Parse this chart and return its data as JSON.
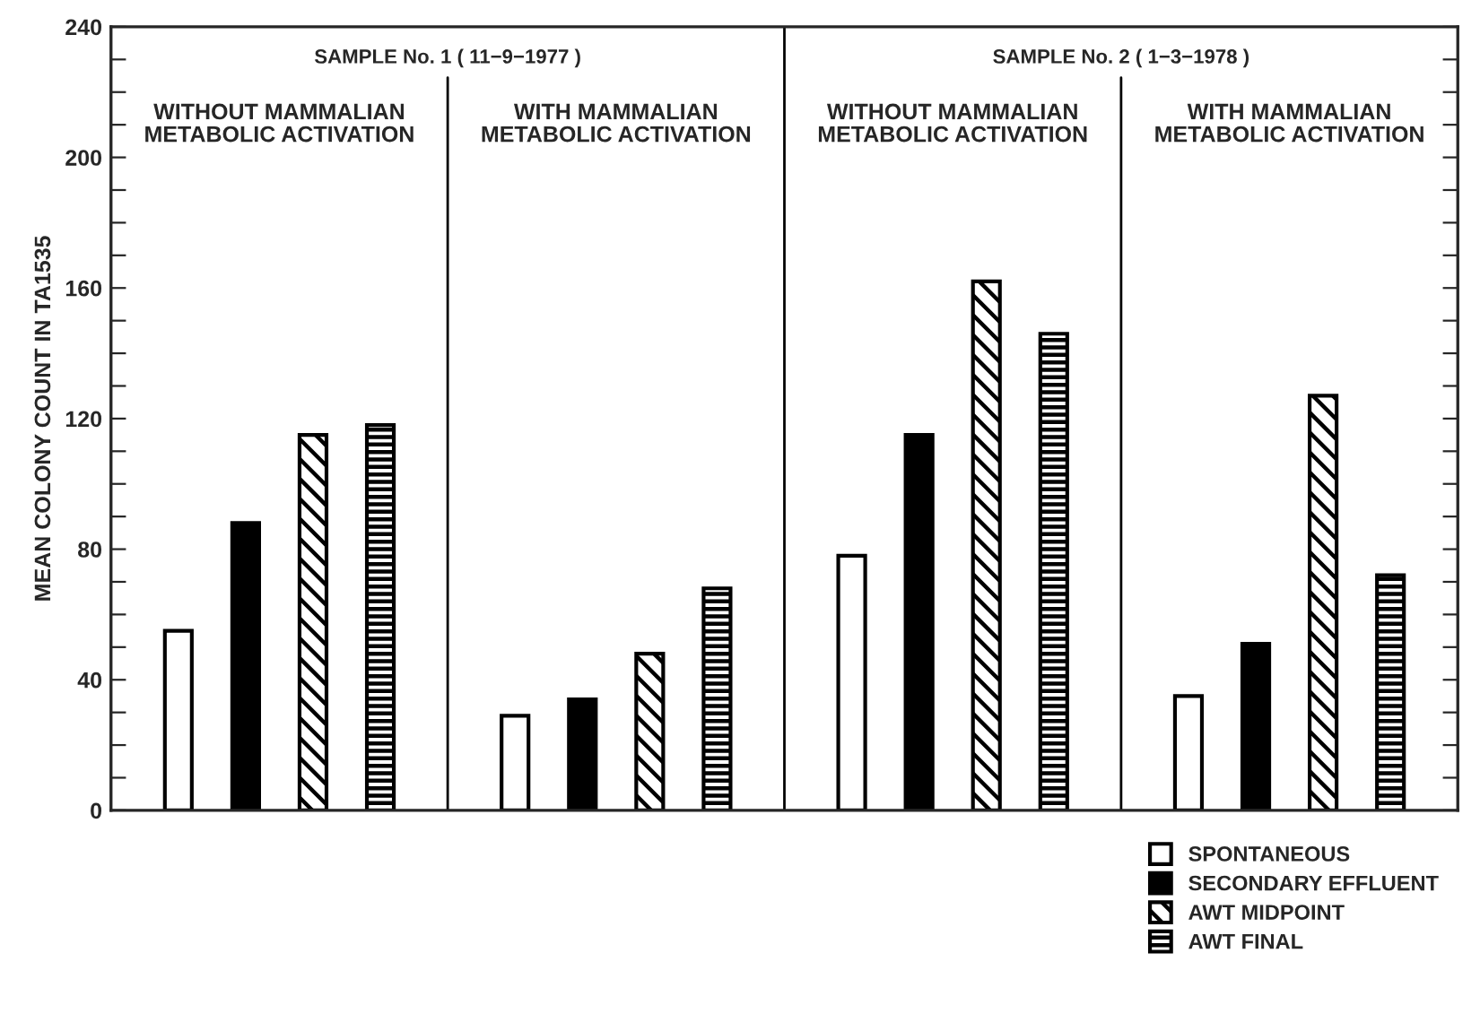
{
  "chart_data": {
    "type": "bar",
    "ylabel": "MEAN COLONY COUNT IN TA1535",
    "categories": [
      "WITHOUT MAMMALIAN\nMETABOLIC ACTIVATION",
      "WITH MAMMALIAN\nMETABOLIC ACTIVATION",
      "WITHOUT MAMMALIAN\nMETABOLIC ACTIVATION",
      "WITH MAMMALIAN\nMETABOLIC ACTIVATION"
    ],
    "annotations": [
      "SAMPLE No. 1 ( 11−9−1977 )",
      "SAMPLE No. 2 ( 1−3−1978 )"
    ],
    "series": [
      {
        "name": "SPONTANEOUS",
        "color": "#ffffff",
        "values": [
          55,
          29,
          78,
          35
        ]
      },
      {
        "name": "SECONDARY EFFLUENT",
        "color": "#000000",
        "values": [
          88,
          34,
          115,
          51
        ]
      },
      {
        "name": "AWT MIDPOINT",
        "color": "#000000",
        "values": [
          115,
          48,
          162,
          127
        ]
      },
      {
        "name": "AWT FINAL",
        "color": "#000000",
        "values": [
          118,
          68,
          146,
          72
        ]
      }
    ],
    "ylim": [
      0,
      240
    ],
    "yticks": [
      0,
      {
        "value": 10,
        "label": null
      },
      {
        "value": 20,
        "label": null
      },
      {
        "value": 30,
        "label": null
      },
      40,
      {
        "value": 50,
        "label": null
      },
      {
        "value": 60,
        "label": null
      },
      {
        "value": 70,
        "label": null
      },
      80,
      {
        "value": 90,
        "label": null
      },
      {
        "value": 100,
        "label": null
      },
      {
        "value": 110,
        "label": null
      },
      120,
      {
        "value": 130,
        "label": null
      },
      {
        "value": 140,
        "label": null
      },
      {
        "value": 150,
        "label": null
      },
      160,
      {
        "value": 170,
        "label": null
      },
      {
        "value": 180,
        "label": null
      },
      {
        "value": 190,
        "label": null
      },
      200,
      {
        "value": 210,
        "label": null
      },
      {
        "value": 220,
        "label": null
      },
      {
        "value": 230,
        "label": null
      },
      240
    ],
    "grid": false,
    "legend": "bottom right"
  }
}
